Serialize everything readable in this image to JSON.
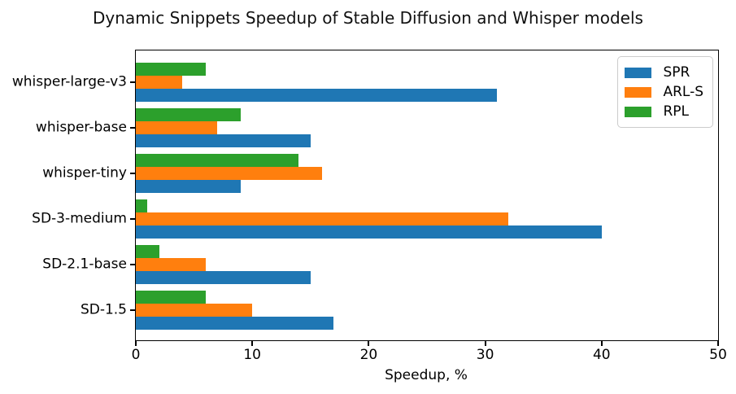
{
  "chart_data": {
    "type": "bar",
    "orientation": "horizontal",
    "title": "Dynamic Snippets Speedup of Stable Diffusion and Whisper models",
    "xlabel": "Speedup, %",
    "ylabel": "",
    "xlim": [
      0,
      50
    ],
    "xticks": [
      0,
      10,
      20,
      30,
      40,
      50
    ],
    "grid": false,
    "legend_position": "upper right",
    "categories": [
      "whisper-large-v3",
      "whisper-base",
      "whisper-tiny",
      "SD-3-medium",
      "SD-2.1-base",
      "SD-1.5"
    ],
    "series": [
      {
        "name": "SPR",
        "color": "#1f77b4",
        "values": [
          31,
          15,
          9,
          40,
          15,
          17
        ]
      },
      {
        "name": "ARL-S",
        "color": "#ff7f0e",
        "values": [
          4,
          7,
          16,
          32,
          6,
          10
        ]
      },
      {
        "name": "RPL",
        "color": "#2ca02c",
        "values": [
          6,
          9,
          14,
          1,
          2,
          6
        ]
      }
    ],
    "colors": {
      "axis": "#000000",
      "legend_border": "#cccccc",
      "background": "#ffffff"
    }
  }
}
